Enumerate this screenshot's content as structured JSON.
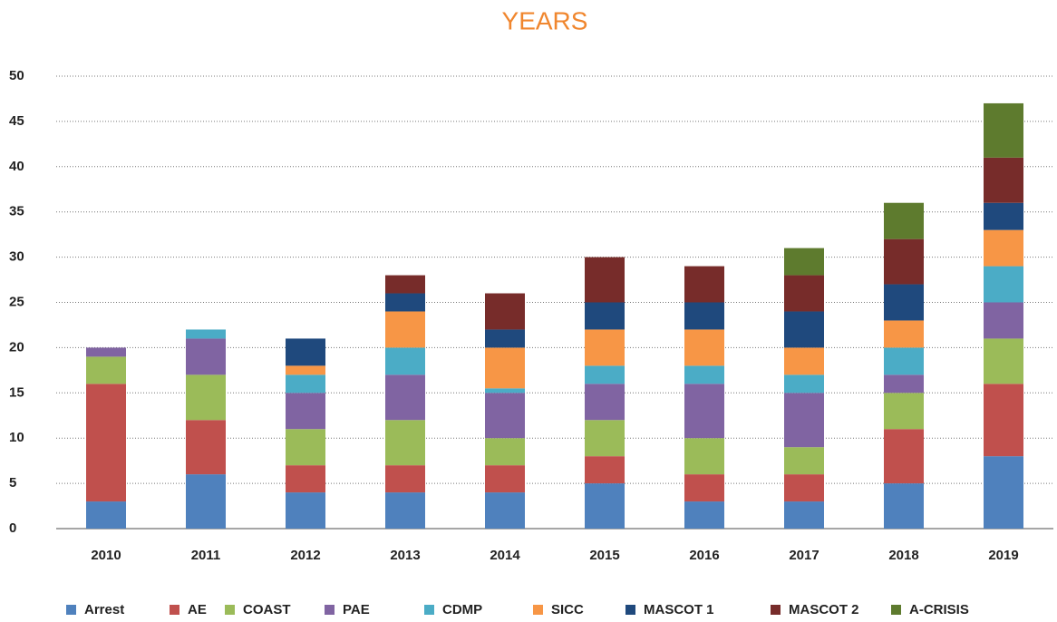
{
  "chart_data": {
    "type": "stacked_bar",
    "title": "YEARS",
    "categories": [
      "2010",
      "2011",
      "2012",
      "2013",
      "2014",
      "2015",
      "2016",
      "2017",
      "2018",
      "2019"
    ],
    "series": [
      {
        "name": "Arrest",
        "color": "#4f81bd",
        "values": [
          3,
          6,
          4,
          4,
          4,
          5,
          3,
          3,
          5,
          8
        ]
      },
      {
        "name": "AE",
        "color": "#c0504d",
        "values": [
          13,
          6,
          3,
          3,
          3,
          3,
          3,
          3,
          6,
          8
        ]
      },
      {
        "name": "COAST",
        "color": "#9bbb59",
        "values": [
          3,
          5,
          4,
          5,
          3,
          4,
          4,
          3,
          4,
          5
        ]
      },
      {
        "name": "PAE",
        "color": "#8064a2",
        "values": [
          1,
          4,
          4,
          5,
          5,
          4,
          6,
          6,
          2,
          4
        ]
      },
      {
        "name": "CDMP",
        "color": "#4bacc6",
        "values": [
          0,
          1,
          2,
          3,
          0.5,
          2,
          2,
          2,
          3,
          4
        ]
      },
      {
        "name": "SICC",
        "color": "#f79646",
        "values": [
          0,
          0,
          1,
          4,
          4.5,
          4,
          4,
          3,
          3,
          4
        ]
      },
      {
        "name": "MASCOT 1",
        "color": "#1f497d",
        "values": [
          0,
          0,
          3,
          2,
          2,
          3,
          3,
          4,
          4,
          3
        ]
      },
      {
        "name": "MASCOT 2",
        "color": "#772c2a",
        "values": [
          0,
          0,
          0,
          2,
          4,
          5,
          4,
          4,
          5,
          5
        ]
      },
      {
        "name": "A-CRISIS",
        "color": "#5e7b2e",
        "values": [
          0,
          0,
          0,
          0,
          0,
          0,
          0,
          3,
          4,
          6
        ]
      }
    ],
    "ylim": [
      0,
      50
    ],
    "yticks": [
      0,
      5,
      10,
      15,
      20,
      25,
      30,
      35,
      40,
      45,
      50
    ],
    "grid": true,
    "legend": "bottom"
  }
}
